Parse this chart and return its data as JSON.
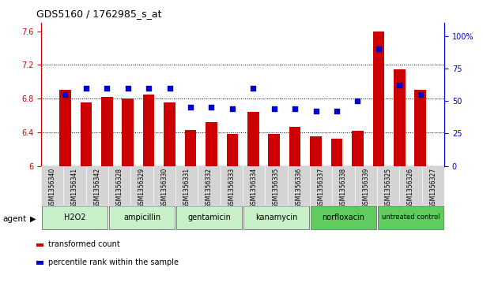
{
  "title": "GDS5160 / 1762985_s_at",
  "samples": [
    "GSM1356340",
    "GSM1356341",
    "GSM1356342",
    "GSM1356328",
    "GSM1356329",
    "GSM1356330",
    "GSM1356331",
    "GSM1356332",
    "GSM1356333",
    "GSM1356334",
    "GSM1356335",
    "GSM1356336",
    "GSM1356337",
    "GSM1356338",
    "GSM1356339",
    "GSM1356325",
    "GSM1356326",
    "GSM1356327"
  ],
  "bar_values": [
    6.9,
    6.75,
    6.82,
    6.8,
    6.85,
    6.75,
    6.43,
    6.52,
    6.38,
    6.64,
    6.38,
    6.46,
    6.35,
    6.32,
    6.42,
    7.6,
    7.15,
    6.9
  ],
  "percentile_values": [
    55,
    60,
    60,
    60,
    60,
    60,
    45,
    45,
    44,
    60,
    44,
    44,
    42,
    42,
    50,
    90,
    62,
    55
  ],
  "groups": [
    {
      "label": "H2O2",
      "start": 0,
      "end": 3,
      "color": "#c8f0c8"
    },
    {
      "label": "ampicillin",
      "start": 3,
      "end": 6,
      "color": "#c8f0c8"
    },
    {
      "label": "gentamicin",
      "start": 6,
      "end": 9,
      "color": "#c8f0c8"
    },
    {
      "label": "kanamycin",
      "start": 9,
      "end": 12,
      "color": "#c8f0c8"
    },
    {
      "label": "norfloxacin",
      "start": 12,
      "end": 15,
      "color": "#60cc60"
    },
    {
      "label": "untreated control",
      "start": 15,
      "end": 18,
      "color": "#60cc60"
    }
  ],
  "bar_color": "#cc0000",
  "dot_color": "#0000cc",
  "ylim_left": [
    6.0,
    7.7
  ],
  "ylim_right": [
    0,
    110
  ],
  "yticks_left": [
    6.0,
    6.4,
    6.8,
    7.2,
    7.6
  ],
  "yticks_right": [
    0,
    25,
    50,
    75,
    100
  ],
  "ytick_labels_left": [
    "6",
    "6.4",
    "6.8",
    "7.2",
    "7.6"
  ],
  "ytick_labels_right": [
    "0",
    "25",
    "50",
    "75",
    "100%"
  ],
  "grid_values": [
    6.4,
    6.8,
    7.2
  ],
  "bar_width": 0.55,
  "agent_label": "agent",
  "legend_bar_label": "transformed count",
  "legend_dot_label": "percentile rank within the sample"
}
